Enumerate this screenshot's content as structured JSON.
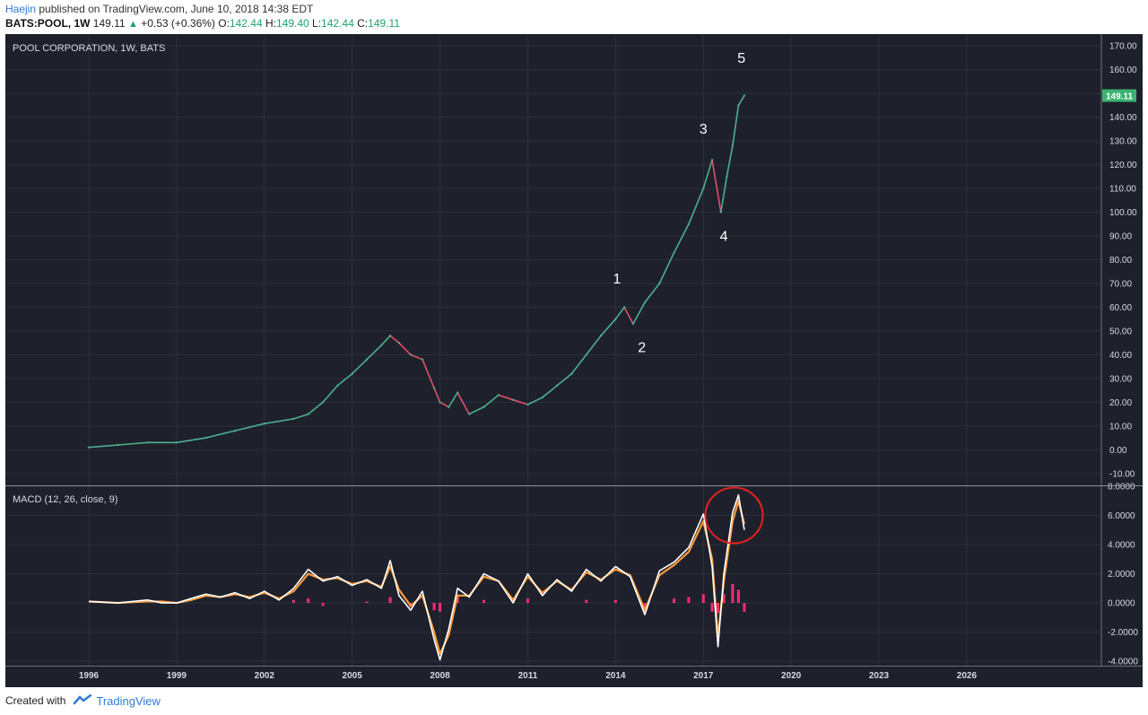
{
  "header": {
    "author": "Haejin",
    "published_text": " published on TradingView.com, June 10, 2018 14:38 EDT",
    "symbol": "BATS:POOL, 1W",
    "last": "149.11",
    "change": "+0.53 (+0.36%)",
    "open_label": "O:",
    "open": "142.44",
    "high_label": "H:",
    "high": "149.40",
    "low_label": "L:",
    "low": "142.44",
    "close_label": "C:",
    "close": "149.11"
  },
  "footer": {
    "created_with": "Created with",
    "brand": "TradingView"
  },
  "colors": {
    "background": "#1e212b",
    "grid": "#2c303c",
    "up_candle": "#4caf8f",
    "down_candle": "#e0506a",
    "macd_line": "#ffffff",
    "signal_line": "#ff9a3c",
    "histogram": "#ff2b77",
    "annotation_circle": "#e82020",
    "price_tag": "#3cb371"
  },
  "chart_data": [
    {
      "type": "line",
      "title": "POOL CORPORATION, 1W, BATS",
      "ylim": [
        -15,
        175
      ],
      "y_ticks": [
        "-10.00",
        "0.00",
        "10.00",
        "20.00",
        "30.00",
        "40.00",
        "50.00",
        "60.00",
        "70.00",
        "80.00",
        "90.00",
        "100.00",
        "110.00",
        "120.00",
        "130.00",
        "140.00",
        "150.00",
        "160.00",
        "170.00"
      ],
      "x_ticks": [
        "1996",
        "1999",
        "2002",
        "2005",
        "2008",
        "2011",
        "2014",
        "2017",
        "2020",
        "2023",
        "2026"
      ],
      "last_price_label": "149.11",
      "series": [
        {
          "x": [
            1996.0,
            1997.0,
            1998.0,
            1999.0,
            2000.0,
            2001.0,
            2002.0,
            2003.0,
            2003.5,
            2004.0,
            2004.5,
            2005.0,
            2005.5,
            2006.0,
            2006.3,
            2006.6,
            2007.0,
            2007.4,
            2007.8,
            2008.0,
            2008.3,
            2008.6,
            2009.0,
            2009.5,
            2010.0,
            2010.5,
            2011.0,
            2011.5,
            2012.0,
            2012.5,
            2013.0,
            2013.5,
            2014.0,
            2014.3,
            2014.6,
            2015.0,
            2015.5,
            2016.0,
            2016.5,
            2017.0,
            2017.3,
            2017.6,
            2017.8,
            2018.0,
            2018.2,
            2018.4
          ],
          "values": [
            1,
            2,
            3,
            3,
            5,
            8,
            11,
            13,
            15,
            20,
            27,
            32,
            38,
            44,
            48,
            45,
            40,
            38,
            26,
            20,
            18,
            24,
            15,
            18,
            23,
            21,
            19,
            22,
            27,
            32,
            40,
            48,
            55,
            60,
            53,
            62,
            70,
            83,
            95,
            110,
            122,
            100,
            115,
            128,
            145,
            149.11
          ]
        }
      ],
      "annotations": [
        {
          "label": "1",
          "x": 2014.05,
          "y": 70
        },
        {
          "label": "2",
          "x": 2014.9,
          "y": 41
        },
        {
          "label": "3",
          "x": 2017.0,
          "y": 133
        },
        {
          "label": "4",
          "x": 2017.7,
          "y": 88
        },
        {
          "label": "5",
          "x": 2018.3,
          "y": 163
        }
      ]
    },
    {
      "type": "line",
      "title": "MACD (12, 26, close, 9)",
      "ylim": [
        -4.3,
        8.0
      ],
      "y_ticks": [
        "-4.0000",
        "-2.0000",
        "0.0000",
        "2.0000",
        "4.0000",
        "6.0000",
        "8.0000"
      ],
      "series": [
        {
          "x": [
            1996.0,
            1997.0,
            1998.0,
            1998.5,
            1999.0,
            1999.5,
            2000.0,
            2000.5,
            2001.0,
            2001.5,
            2002.0,
            2002.5,
            2003.0,
            2003.5,
            2004.0,
            2004.5,
            2005.0,
            2005.5,
            2006.0,
            2006.3,
            2006.6,
            2007.0,
            2007.4,
            2007.8,
            2008.0,
            2008.3,
            2008.6,
            2009.0,
            2009.5,
            2010.0,
            2010.5,
            2011.0,
            2011.5,
            2012.0,
            2012.5,
            2013.0,
            2013.5,
            2014.0,
            2014.5,
            2015.0,
            2015.5,
            2016.0,
            2016.5,
            2017.0,
            2017.3,
            2017.5,
            2017.7,
            2018.0,
            2018.2,
            2018.4
          ],
          "values": [
            0.1,
            0.0,
            0.2,
            0.0,
            0.0,
            0.3,
            0.6,
            0.4,
            0.7,
            0.3,
            0.8,
            0.2,
            1.0,
            2.3,
            1.5,
            1.8,
            1.2,
            1.6,
            1.0,
            2.9,
            0.5,
            -0.5,
            0.8,
            -2.5,
            -3.9,
            -1.8,
            1.0,
            0.4,
            2.0,
            1.5,
            0.0,
            2.0,
            0.5,
            1.6,
            0.8,
            2.3,
            1.5,
            2.5,
            1.8,
            -0.8,
            2.2,
            2.8,
            3.8,
            6.1,
            2.5,
            -3.0,
            2.0,
            6.2,
            7.4,
            5.0
          ]
        },
        {
          "x": [
            1996.0,
            1997.0,
            1998.0,
            1998.5,
            1999.0,
            1999.5,
            2000.0,
            2000.5,
            2001.0,
            2001.5,
            2002.0,
            2002.5,
            2003.0,
            2003.5,
            2004.0,
            2004.5,
            2005.0,
            2005.5,
            2006.0,
            2006.3,
            2006.6,
            2007.0,
            2007.4,
            2007.8,
            2008.0,
            2008.3,
            2008.6,
            2009.0,
            2009.5,
            2010.0,
            2010.5,
            2011.0,
            2011.5,
            2012.0,
            2012.5,
            2013.0,
            2013.5,
            2014.0,
            2014.5,
            2015.0,
            2015.5,
            2016.0,
            2016.5,
            2017.0,
            2017.3,
            2017.5,
            2017.7,
            2018.0,
            2018.2,
            2018.4
          ],
          "values": [
            0.1,
            0.0,
            0.1,
            0.1,
            0.0,
            0.2,
            0.5,
            0.4,
            0.6,
            0.4,
            0.7,
            0.3,
            0.8,
            2.0,
            1.6,
            1.7,
            1.3,
            1.5,
            1.1,
            2.5,
            0.9,
            -0.2,
            0.5,
            -2.0,
            -3.5,
            -2.2,
            0.5,
            0.5,
            1.8,
            1.5,
            0.2,
            1.8,
            0.7,
            1.5,
            0.9,
            2.1,
            1.6,
            2.3,
            1.9,
            -0.5,
            1.9,
            2.6,
            3.5,
            5.6,
            3.0,
            -2.4,
            1.5,
            5.6,
            7.0,
            5.4
          ]
        }
      ],
      "histogram": {
        "x": [
          2003.0,
          2003.5,
          2004.0,
          2005.5,
          2006.3,
          2007.0,
          2007.8,
          2008.0,
          2008.6,
          2009.5,
          2011.0,
          2013.0,
          2014.0,
          2015.0,
          2016.0,
          2016.5,
          2017.0,
          2017.3,
          2017.5,
          2017.7,
          2018.0,
          2018.2,
          2018.4
        ],
        "values": [
          0.2,
          0.3,
          -0.2,
          0.1,
          0.4,
          -0.3,
          -0.5,
          -0.6,
          0.6,
          0.2,
          0.3,
          0.2,
          0.2,
          -0.3,
          0.3,
          0.4,
          0.6,
          -0.6,
          -0.7,
          0.6,
          1.3,
          0.9,
          -0.6
        ]
      },
      "annotation_circle": {
        "x": 2018.05,
        "y": 6.0
      }
    }
  ]
}
